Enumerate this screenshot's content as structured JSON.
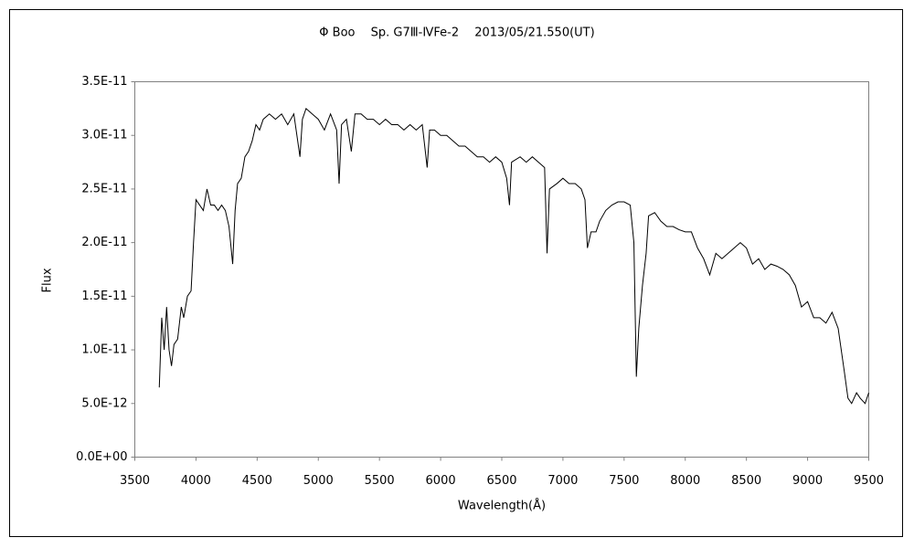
{
  "chart_data": {
    "type": "line",
    "title": "Φ Boo　 Sp. G7Ⅲ-ⅣFe-2　 2013/05/21.550(UT)",
    "x_label": "Wavelength(Å)",
    "y_label": "Flux",
    "color": "#000000",
    "xlim": [
      3500,
      9500
    ],
    "xticks": [
      3500,
      4000,
      4500,
      5000,
      5500,
      6000,
      6500,
      7000,
      7500,
      8000,
      8500,
      9000,
      9500
    ],
    "ylim": [
      0,
      3.5e-11
    ],
    "yticks": [
      {
        "value": 0,
        "label": "0.0E+00"
      },
      {
        "value": 5e-12,
        "label": "5.0E-12"
      },
      {
        "value": 1e-11,
        "label": "1.0E-11"
      },
      {
        "value": 1.5e-11,
        "label": "1.5E-11"
      },
      {
        "value": 2e-11,
        "label": "2.0E-11"
      },
      {
        "value": 2.5e-11,
        "label": "2.5E-11"
      },
      {
        "value": 3e-11,
        "label": "3.0E-11"
      },
      {
        "value": 3.5e-11,
        "label": "3.5E-11"
      }
    ],
    "grid": false,
    "x": [
      3700,
      3720,
      3740,
      3760,
      3780,
      3800,
      3820,
      3850,
      3880,
      3900,
      3930,
      3960,
      3980,
      4000,
      4030,
      4060,
      4090,
      4120,
      4150,
      4180,
      4210,
      4240,
      4270,
      4300,
      4320,
      4340,
      4370,
      4400,
      4430,
      4460,
      4490,
      4520,
      4550,
      4600,
      4650,
      4700,
      4750,
      4800,
      4850,
      4870,
      4900,
      4950,
      5000,
      5050,
      5100,
      5150,
      5170,
      5190,
      5230,
      5270,
      5300,
      5350,
      5400,
      5450,
      5500,
      5550,
      5600,
      5650,
      5700,
      5750,
      5800,
      5850,
      5890,
      5910,
      5950,
      6000,
      6050,
      6100,
      6150,
      6200,
      6250,
      6300,
      6350,
      6400,
      6450,
      6500,
      6540,
      6563,
      6580,
      6650,
      6700,
      6750,
      6800,
      6850,
      6870,
      6890,
      6950,
      7000,
      7050,
      7100,
      7150,
      7180,
      7200,
      7230,
      7270,
      7300,
      7350,
      7400,
      7450,
      7500,
      7550,
      7580,
      7600,
      7620,
      7650,
      7680,
      7700,
      7750,
      7800,
      7850,
      7900,
      7950,
      8000,
      8050,
      8100,
      8150,
      8200,
      8250,
      8300,
      8350,
      8400,
      8450,
      8500,
      8550,
      8600,
      8650,
      8700,
      8750,
      8800,
      8850,
      8900,
      8950,
      9000,
      9050,
      9100,
      9150,
      9200,
      9250,
      9300,
      9330,
      9360,
      9400,
      9430,
      9470,
      9500
    ],
    "values": [
      6.5e-12,
      1.3e-11,
      1e-11,
      1.4e-11,
      1e-11,
      8.5e-12,
      1.05e-11,
      1.1e-11,
      1.4e-11,
      1.3e-11,
      1.5e-11,
      1.55e-11,
      2e-11,
      2.4e-11,
      2.35e-11,
      2.3e-11,
      2.5e-11,
      2.35e-11,
      2.35e-11,
      2.3e-11,
      2.35e-11,
      2.3e-11,
      2.15e-11,
      1.8e-11,
      2.3e-11,
      2.55e-11,
      2.6e-11,
      2.8e-11,
      2.85e-11,
      2.95e-11,
      3.1e-11,
      3.05e-11,
      3.15e-11,
      3.2e-11,
      3.15e-11,
      3.2e-11,
      3.1e-11,
      3.2e-11,
      2.8e-11,
      3.15e-11,
      3.25e-11,
      3.2e-11,
      3.15e-11,
      3.05e-11,
      3.2e-11,
      3.05e-11,
      2.55e-11,
      3.1e-11,
      3.15e-11,
      2.85e-11,
      3.2e-11,
      3.2e-11,
      3.15e-11,
      3.15e-11,
      3.1e-11,
      3.15e-11,
      3.1e-11,
      3.1e-11,
      3.05e-11,
      3.1e-11,
      3.05e-11,
      3.1e-11,
      2.7e-11,
      3.05e-11,
      3.05e-11,
      3e-11,
      3e-11,
      2.95e-11,
      2.9e-11,
      2.9e-11,
      2.85e-11,
      2.8e-11,
      2.8e-11,
      2.75e-11,
      2.8e-11,
      2.75e-11,
      2.6e-11,
      2.35e-11,
      2.75e-11,
      2.8e-11,
      2.75e-11,
      2.8e-11,
      2.75e-11,
      2.7e-11,
      1.9e-11,
      2.5e-11,
      2.55e-11,
      2.6e-11,
      2.55e-11,
      2.55e-11,
      2.5e-11,
      2.4e-11,
      1.95e-11,
      2.1e-11,
      2.1e-11,
      2.2e-11,
      2.3e-11,
      2.35e-11,
      2.38e-11,
      2.38e-11,
      2.35e-11,
      2e-11,
      7.5e-12,
      1.2e-11,
      1.6e-11,
      1.9e-11,
      2.25e-11,
      2.28e-11,
      2.2e-11,
      2.15e-11,
      2.15e-11,
      2.12e-11,
      2.1e-11,
      2.1e-11,
      1.95e-11,
      1.85e-11,
      1.7e-11,
      1.9e-11,
      1.85e-11,
      1.9e-11,
      1.95e-11,
      2e-11,
      1.95e-11,
      1.8e-11,
      1.85e-11,
      1.75e-11,
      1.8e-11,
      1.78e-11,
      1.75e-11,
      1.7e-11,
      1.6e-11,
      1.4e-11,
      1.45e-11,
      1.3e-11,
      1.3e-11,
      1.25e-11,
      1.35e-11,
      1.2e-11,
      8e-12,
      5.5e-12,
      5e-12,
      6e-12,
      5.5e-12,
      5e-12,
      6e-12
    ]
  }
}
